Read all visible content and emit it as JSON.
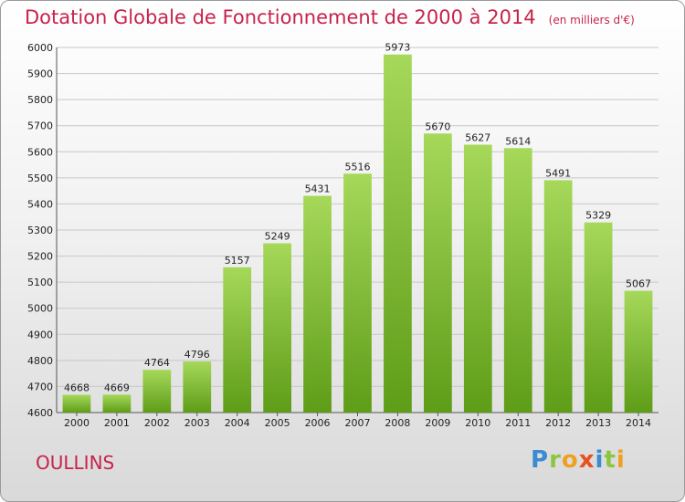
{
  "title": "Dotation Globale de Fonctionnement de 2000 à 2014",
  "unit_note": "(en milliers d'€)",
  "city": "OULLINS",
  "logo": {
    "letters": [
      "P",
      "r",
      "o",
      "x",
      "i",
      "t",
      "i"
    ]
  },
  "colors": {
    "title": "#c8224b",
    "bar_top": "#a6d85a",
    "bar_bottom": "#5e9d18",
    "grid": "#c8c8c8"
  },
  "chart_data": {
    "type": "bar",
    "categories": [
      "2000",
      "2001",
      "2002",
      "2003",
      "2004",
      "2005",
      "2006",
      "2007",
      "2008",
      "2009",
      "2010",
      "2011",
      "2012",
      "2013",
      "2014"
    ],
    "values": [
      4668,
      4669,
      4764,
      4796,
      5157,
      5249,
      5431,
      5516,
      5973,
      5670,
      5627,
      5614,
      5491,
      5329,
      5067
    ],
    "data_labels": [
      "4668",
      "4669",
      "4764",
      "4796",
      "5157",
      "5249",
      "5431",
      "5516",
      "5973",
      "5670",
      "5627",
      "5614",
      "5491",
      "5329",
      "5067"
    ],
    "title": "Dotation Globale de Fonctionnement de 2000 à 2014",
    "xlabel": "",
    "ylabel": "",
    "ylim": [
      4600,
      6000
    ],
    "yticks": [
      4600,
      4700,
      4800,
      4900,
      5000,
      5100,
      5200,
      5300,
      5400,
      5500,
      5600,
      5700,
      5800,
      5900,
      6000
    ],
    "grid": true,
    "legend": "none"
  }
}
